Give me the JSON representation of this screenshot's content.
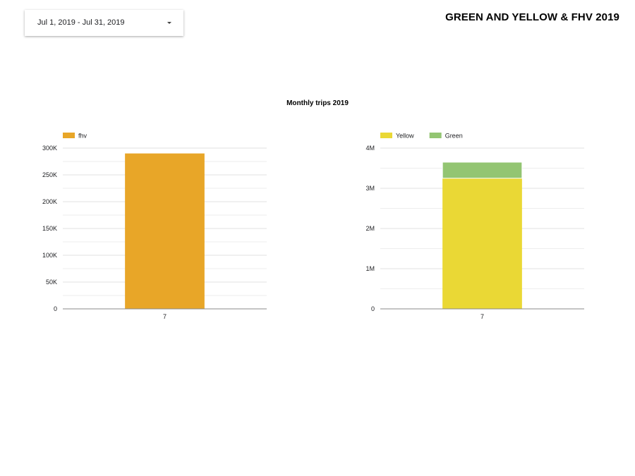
{
  "header": {
    "date_range": "Jul 1, 2019 - Jul 31, 2019",
    "report_title": "GREEN AND YELLOW & FHV 2019"
  },
  "icons": {
    "date_dropdown": "caret-down-icon"
  },
  "chart_title": "Monthly trips 2019",
  "colors": {
    "fhv": "#E8A628",
    "yellow": "#EAD835",
    "green": "#93C572",
    "grid": "#e0e0e0",
    "axis": "#888888"
  },
  "chart_data": [
    {
      "type": "bar",
      "title": "Monthly trips 2019",
      "categories": [
        "7"
      ],
      "series": [
        {
          "name": "fhv",
          "values": [
            290000
          ],
          "color": "#E8A628"
        }
      ],
      "ylim": [
        0,
        300000
      ],
      "yticks": [
        0,
        50000,
        100000,
        150000,
        200000,
        250000,
        300000
      ],
      "ytick_labels": [
        "0",
        "50K",
        "100K",
        "150K",
        "200K",
        "250K",
        "300K"
      ],
      "grid": true,
      "legend": "top-left"
    },
    {
      "type": "bar",
      "stacked": true,
      "categories": [
        "7"
      ],
      "series": [
        {
          "name": "Yellow",
          "values": [
            3250000
          ],
          "color": "#EAD835"
        },
        {
          "name": "Green",
          "values": [
            400000
          ],
          "color": "#93C572"
        }
      ],
      "ylim": [
        0,
        4000000
      ],
      "yticks": [
        0,
        1000000,
        2000000,
        3000000,
        4000000
      ],
      "ytick_labels": [
        "0",
        "1M",
        "2M",
        "3M",
        "4M"
      ],
      "grid": true,
      "legend": "top-left"
    }
  ]
}
